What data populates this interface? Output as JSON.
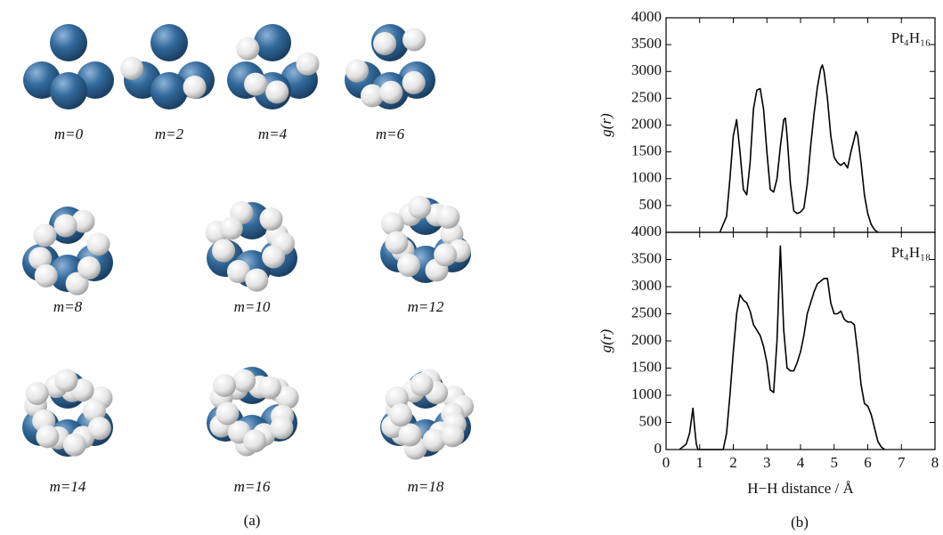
{
  "panel_a": {
    "labels": [
      "m=0",
      "m=2",
      "m=4",
      "m=6",
      "m=8",
      "m=10",
      "m=12",
      "m=14",
      "m=16",
      "m=18"
    ],
    "caption": "(a)"
  },
  "panel_b": {
    "caption": "(b)"
  },
  "chart_data": [
    {
      "type": "line",
      "annotation": "Pt₄H₁₆",
      "ylabel": "g(r)",
      "color": "#000000",
      "xlim": [
        0,
        8
      ],
      "xticks": [
        0,
        1,
        2,
        3,
        4,
        5,
        6,
        7,
        8
      ],
      "ylim": [
        0,
        4000
      ],
      "yticks": [
        500,
        1000,
        1500,
        2000,
        2500,
        3000,
        3500,
        4000
      ],
      "x": [
        1.6,
        1.8,
        1.9,
        2.0,
        2.1,
        2.2,
        2.3,
        2.4,
        2.5,
        2.6,
        2.7,
        2.8,
        2.9,
        3.0,
        3.1,
        3.2,
        3.3,
        3.4,
        3.5,
        3.55,
        3.6,
        3.7,
        3.8,
        3.9,
        4.0,
        4.1,
        4.2,
        4.3,
        4.4,
        4.5,
        4.6,
        4.65,
        4.7,
        4.8,
        4.9,
        5.0,
        5.1,
        5.2,
        5.3,
        5.4,
        5.5,
        5.6,
        5.65,
        5.7,
        5.8,
        5.9,
        6.0,
        6.1,
        6.2,
        6.3
      ],
      "values": [
        0,
        300,
        1000,
        1800,
        2100,
        1500,
        800,
        700,
        1300,
        2300,
        2650,
        2680,
        2300,
        1500,
        800,
        750,
        1000,
        1600,
        2100,
        2130,
        1800,
        900,
        400,
        350,
        380,
        450,
        900,
        1600,
        2200,
        2700,
        3050,
        3120,
        3000,
        2500,
        1800,
        1400,
        1300,
        1250,
        1300,
        1200,
        1500,
        1750,
        1880,
        1800,
        1300,
        700,
        350,
        150,
        50,
        0
      ]
    },
    {
      "type": "line",
      "annotation": "Pt₄H₁₈",
      "ylabel": "g(r)",
      "xlabel": "H−H distance / Å",
      "color": "#000000",
      "xlim": [
        0,
        8
      ],
      "xticks": [
        0,
        1,
        2,
        3,
        4,
        5,
        6,
        7,
        8
      ],
      "ylim": [
        0,
        4000
      ],
      "yticks": [
        0,
        500,
        1000,
        1500,
        2000,
        2500,
        3000,
        3500,
        4000
      ],
      "x": [
        0.4,
        0.6,
        0.7,
        0.8,
        0.85,
        0.9,
        0.95,
        1.7,
        1.8,
        1.9,
        2.0,
        2.1,
        2.2,
        2.3,
        2.4,
        2.5,
        2.6,
        2.7,
        2.8,
        2.9,
        3.0,
        3.1,
        3.2,
        3.3,
        3.4,
        3.5,
        3.6,
        3.7,
        3.8,
        3.9,
        4.0,
        4.1,
        4.2,
        4.3,
        4.4,
        4.5,
        4.6,
        4.7,
        4.8,
        4.9,
        5.0,
        5.1,
        5.2,
        5.3,
        5.4,
        5.5,
        5.6,
        5.7,
        5.8,
        5.9,
        6.0,
        6.1,
        6.2,
        6.3,
        6.4,
        6.5
      ],
      "values": [
        0,
        100,
        300,
        760,
        400,
        100,
        0,
        0,
        300,
        1000,
        1800,
        2500,
        2850,
        2750,
        2700,
        2550,
        2300,
        2200,
        2100,
        1900,
        1600,
        1100,
        1050,
        2000,
        3750,
        2200,
        1500,
        1450,
        1450,
        1600,
        1800,
        2100,
        2500,
        2700,
        2900,
        3050,
        3100,
        3150,
        3150,
        2700,
        2500,
        2500,
        2550,
        2400,
        2350,
        2350,
        2300,
        1800,
        1200,
        850,
        800,
        650,
        400,
        150,
        50,
        0
      ]
    }
  ]
}
